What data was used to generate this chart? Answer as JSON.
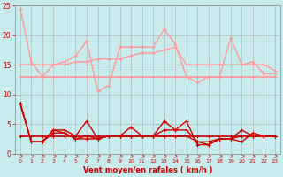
{
  "xlabel": "Vent moyen/en rafales ( km/h )",
  "bg_color": "#c8ecee",
  "grid_color": "#aaaaaa",
  "xlim": [
    -0.5,
    23.5
  ],
  "ylim": [
    0,
    25
  ],
  "yticks": [
    0,
    5,
    10,
    15,
    20,
    25
  ],
  "xticks": [
    0,
    1,
    2,
    3,
    4,
    5,
    6,
    7,
    8,
    9,
    10,
    11,
    12,
    13,
    14,
    15,
    16,
    17,
    18,
    19,
    20,
    21,
    22,
    23
  ],
  "line_light_flat": {
    "color": "#ff9999",
    "y": [
      13,
      13,
      13,
      13,
      13,
      13,
      13,
      13,
      13,
      13,
      13,
      13,
      13,
      13,
      13,
      13,
      13,
      13,
      13,
      13,
      13,
      13,
      13,
      13
    ]
  },
  "line_light_vary": {
    "color": "#ff9999",
    "y": [
      24.5,
      15.5,
      13,
      15,
      15.5,
      16.5,
      19,
      10.5,
      11.5,
      18,
      18,
      18,
      18,
      21,
      18.5,
      13,
      12,
      13,
      13,
      19.5,
      15,
      15.5,
      13.5,
      13.5
    ]
  },
  "line_light_trend": {
    "color": "#ff9999",
    "y": [
      15,
      15,
      15,
      15,
      15,
      15.5,
      15.5,
      16,
      16,
      16,
      16.5,
      17,
      17,
      17.5,
      18,
      15,
      15,
      15,
      15,
      15,
      15,
      15,
      15,
      14
    ]
  },
  "line_dark_flat": {
    "color": "#cc0000",
    "y": [
      3,
      3,
      3,
      3,
      3,
      3,
      3,
      3,
      3,
      3,
      3,
      3,
      3,
      3,
      3,
      3,
      3,
      3,
      3,
      3,
      3,
      3,
      3,
      3
    ]
  },
  "line_dark1": {
    "color": "#cc0000",
    "y": [
      8.5,
      2,
      2,
      4,
      4,
      3,
      5.5,
      2.5,
      3,
      3,
      3,
      3,
      3,
      5.5,
      4,
      5.5,
      1.5,
      1.5,
      2.5,
      2.5,
      4,
      3,
      3,
      3
    ]
  },
  "line_dark2": {
    "color": "#cc0000",
    "y": [
      8.5,
      2,
      2,
      4,
      3.5,
      2.5,
      2.5,
      2.5,
      3,
      3,
      4.5,
      3,
      3,
      4,
      4,
      4,
      2,
      1.5,
      2.5,
      2.5,
      2,
      3.5,
      3,
      3
    ]
  },
  "line_dark3": {
    "color": "#cc0000",
    "y": [
      8.5,
      2,
      2,
      3.5,
      3.5,
      2.5,
      3,
      2.5,
      3,
      3,
      3,
      3,
      3,
      3,
      3,
      3,
      2,
      2,
      2.5,
      2.5,
      3,
      3,
      3,
      3
    ]
  }
}
